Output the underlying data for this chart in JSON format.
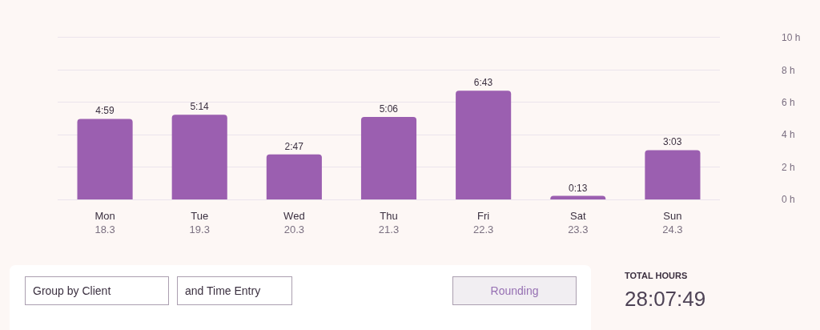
{
  "chart_data": [
    {
      "type": "bar",
      "categories": [
        "Mon\n18.3",
        "Tue\n19.3",
        "Wed\n20.3",
        "Thu\n21.3",
        "Fri\n22.3",
        "Sat\n23.3",
        "Sun\n24.3"
      ],
      "values": [
        4.98,
        5.23,
        2.78,
        5.1,
        6.72,
        0.22,
        3.05
      ],
      "value_labels": [
        "4:59",
        "5:14",
        "2:47",
        "5:06",
        "6:43",
        "0:13",
        "3:03"
      ],
      "color": "#9b5fb0",
      "ylim": [
        0,
        10
      ],
      "yticks": [
        {
          "value": 0,
          "label": "0 h"
        },
        {
          "value": 2,
          "label": "2 h"
        },
        {
          "value": 4,
          "label": "4 h"
        },
        {
          "value": 6,
          "label": "6 h"
        },
        {
          "value": 8,
          "label": "8 h"
        },
        {
          "value": 10,
          "label": "10 h"
        }
      ],
      "grid": "y"
    },
    {
      "type": "other",
      "annotations": [
        "Group by Client",
        "and Time Entry",
        "Rounding",
        "TOTAL HOURS",
        "28:07:49"
      ]
    }
  ]
}
